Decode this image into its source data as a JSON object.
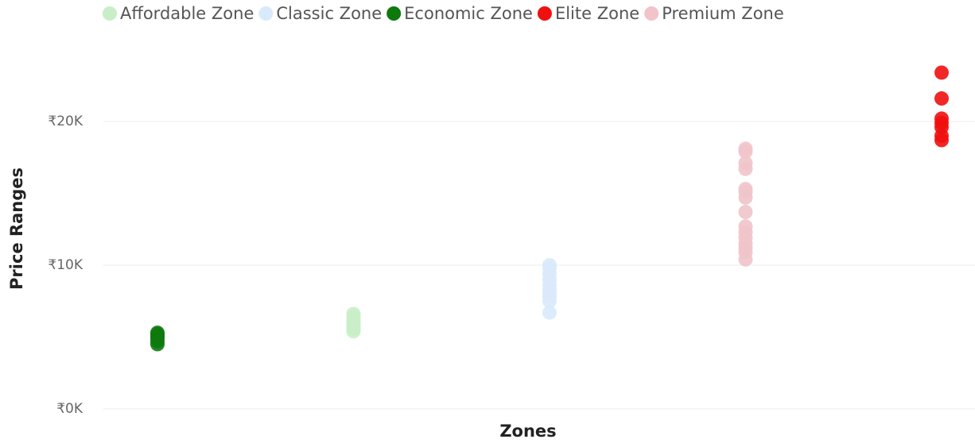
{
  "chart_data": {
    "type": "scatter",
    "x_label": "Zones",
    "y_label": "Price Ranges",
    "series": [
      {
        "name": "Affordable Zone",
        "color": "#c8eec8",
        "values": [
          5400,
          5600,
          5800,
          6000,
          6200,
          6400,
          6600
        ]
      },
      {
        "name": "Classic Zone",
        "color": "#d9eafb",
        "values": [
          6700,
          7500,
          7800,
          8000,
          8300,
          8600,
          9000,
          9400,
          9800,
          10000
        ]
      },
      {
        "name": "Economic Zone",
        "color": "#0e7a0e",
        "values": [
          4500,
          4700,
          4900,
          5000,
          5100,
          5200,
          5300
        ]
      },
      {
        "name": "Elite Zone",
        "color": "#f01010",
        "values": [
          18700,
          19000,
          19600,
          19900,
          20200,
          21600,
          23400
        ]
      },
      {
        "name": "Premium Zone",
        "color": "#f0c4ca",
        "values": [
          10400,
          10900,
          11200,
          11500,
          11900,
          12300,
          12700,
          13700,
          14700,
          15100,
          15300,
          16700,
          17100,
          17900,
          18100
        ]
      }
    ],
    "ylim": [
      0,
      24000
    ],
    "yticks": [
      {
        "value": 0,
        "label": "₹0K"
      },
      {
        "value": 10000,
        "label": "₹10K"
      },
      {
        "value": 20000,
        "label": "₹20K"
      }
    ],
    "grid": true,
    "legend": "top"
  }
}
